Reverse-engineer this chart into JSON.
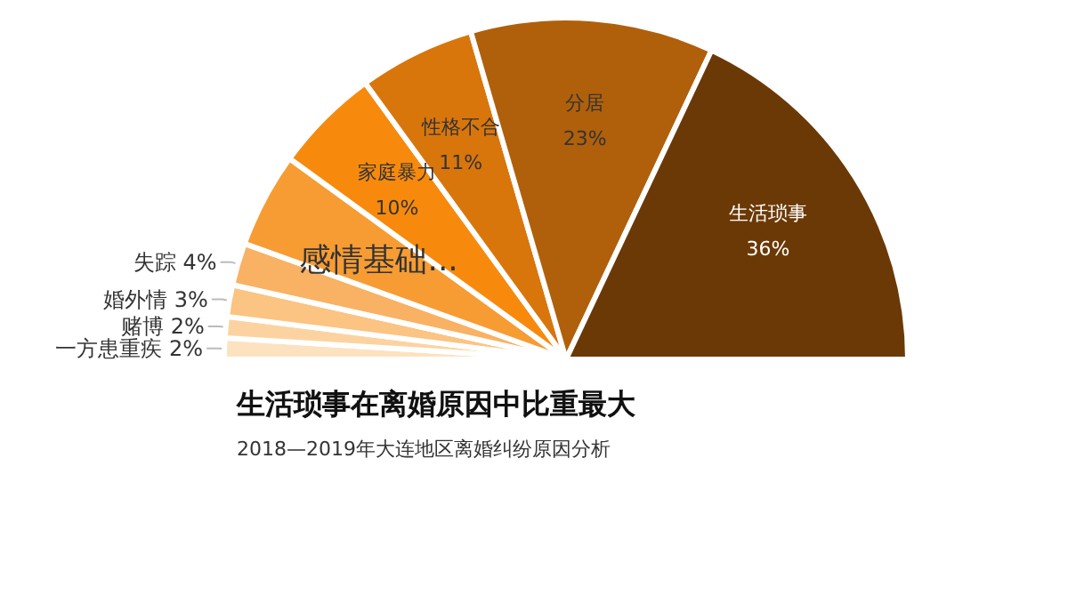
{
  "chart_data": {
    "type": "pie",
    "title": "生活琐事在离婚原因中比重最大",
    "subtitle": "2018—2019年大连地区离婚纠纷原因分析",
    "categories": [
      "一方患重疾",
      "赌博",
      "婚外情",
      "失踪",
      "感情基础...",
      "家庭暴力",
      "性格不合",
      "分居",
      "生活琐事"
    ],
    "values": [
      2,
      2,
      3,
      4,
      9,
      10,
      11,
      23,
      36
    ],
    "value_labels": [
      "2%",
      "2%",
      "3%",
      "4%",
      null,
      "10%",
      "11%",
      "23%",
      "36%"
    ],
    "colors": [
      "#fde2c0",
      "#fcd3a0",
      "#fbc482",
      "#f9b163",
      "#f79c33",
      "#f78a0c",
      "#d8760c",
      "#b0600b",
      "#6b3906"
    ],
    "legend": false
  }
}
